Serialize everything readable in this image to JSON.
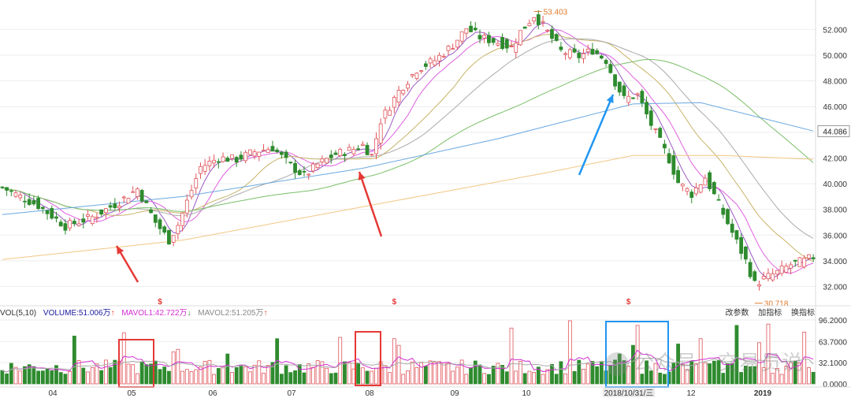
{
  "chart_data": [
    {
      "type": "candlestick",
      "title": "",
      "ylim": [
        30.5,
        53.8
      ],
      "y_ticks": [
        "52.000",
        "50.000",
        "48.000",
        "46.000",
        "44.000",
        "42.000",
        "40.000",
        "38.000",
        "36.000",
        "34.000",
        "32.000"
      ],
      "y_tick_values": [
        52,
        50,
        48,
        46,
        44,
        42,
        40,
        38,
        36,
        34,
        32
      ],
      "last_price_label": "44.086",
      "annotations": {
        "high": "53.403",
        "low": "30.718"
      },
      "x_month_labels": [
        "04",
        "05",
        "06",
        "07",
        "08",
        "09",
        "10",
        "2018/10/31/三",
        "12",
        "2019"
      ],
      "close_path": [
        [
          0,
          39.7
        ],
        [
          8,
          38.3
        ],
        [
          14,
          36.7
        ],
        [
          20,
          37.4
        ],
        [
          26,
          38.6
        ],
        [
          30,
          39.6
        ],
        [
          34,
          37.0
        ],
        [
          37,
          35.6
        ],
        [
          39,
          36.8
        ],
        [
          42,
          39.5
        ],
        [
          44,
          41.3
        ],
        [
          48,
          42.0
        ],
        [
          52,
          41.9
        ],
        [
          56,
          42.5
        ],
        [
          60,
          42.8
        ],
        [
          64,
          41.4
        ],
        [
          67,
          40.6
        ],
        [
          70,
          41.5
        ],
        [
          74,
          42.3
        ],
        [
          78,
          42.7
        ],
        [
          80,
          43.0
        ],
        [
          82,
          42.2
        ],
        [
          84,
          44.9
        ],
        [
          88,
          47.2
        ],
        [
          92,
          48.9
        ],
        [
          96,
          49.6
        ],
        [
          100,
          50.8
        ],
        [
          103,
          52.1
        ],
        [
          106,
          51.4
        ],
        [
          110,
          51.0
        ],
        [
          113,
          50.6
        ],
        [
          115,
          51.8
        ],
        [
          118,
          53.1
        ],
        [
          120,
          52.3
        ],
        [
          124,
          50.3
        ],
        [
          128,
          49.9
        ],
        [
          131,
          50.4
        ],
        [
          134,
          49.6
        ],
        [
          136,
          47.9
        ],
        [
          138,
          46.6
        ],
        [
          141,
          46.9
        ],
        [
          144,
          44.6
        ],
        [
          148,
          41.9
        ],
        [
          150,
          40.1
        ],
        [
          153,
          39.2
        ],
        [
          156,
          40.5
        ],
        [
          159,
          38.4
        ],
        [
          162,
          36.2
        ],
        [
          165,
          34.0
        ],
        [
          167,
          32.2
        ],
        [
          169,
          32.6
        ],
        [
          172,
          33.1
        ],
        [
          175,
          33.7
        ],
        [
          178,
          34.0
        ],
        [
          180,
          34.3
        ]
      ],
      "ma_period_colors": {
        "ma5": "#9b59c4",
        "ma10": "#e060e0",
        "ma20": "#c8b46a",
        "ma30": "#aaaaaa",
        "ma60": "#7bbf6a",
        "ma120": "#6aa8e0",
        "ma250": "#f2c784"
      },
      "candle_colors": {
        "up": "#e0545a",
        "down": "#2e8b2e"
      },
      "signal_marks": [
        "$",
        "$",
        "$"
      ],
      "arrows": [
        {
          "color": "#e53935"
        },
        {
          "color": "#e53935"
        },
        {
          "color": "#2196f3"
        }
      ]
    },
    {
      "type": "bar",
      "title": "",
      "legend": {
        "name": "VOL(5,10)",
        "volume": "VOLUME:51.006万",
        "volume_arrow": "↑",
        "mavol1": "MAVOL1:42.722万",
        "mavol1_arrow": "↓",
        "mavol2": "MAVOL2:51.205万",
        "mavol2_arrow": "↑"
      },
      "ylim": [
        0,
        96.2
      ],
      "y_ticks": [
        "96.2000",
        "63.7000",
        "32.1000",
        "0.0000"
      ],
      "y_tick_values": [
        96.2,
        63.7,
        32.1,
        0
      ]
    }
  ],
  "toolbar": {
    "params": "改参数",
    "add_indicator": "加指标",
    "switch_indicator": "换指标"
  },
  "watermark": "公众号 · 交易员说",
  "colors": {
    "grid": "#eeeeee",
    "red_box": "#e53935",
    "blue_box": "#2196f3"
  }
}
